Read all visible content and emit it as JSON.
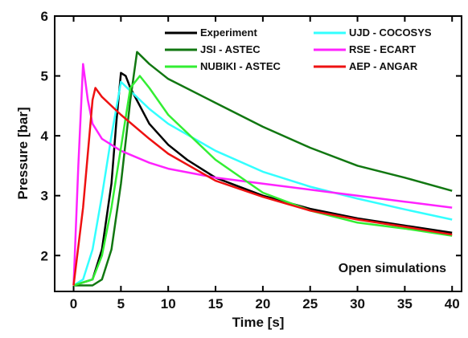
{
  "chart_data": {
    "type": "line",
    "xlabel": "Time [s]",
    "ylabel": "Pressure [bar]",
    "xlim": [
      -2,
      41
    ],
    "ylim": [
      1.4,
      6
    ],
    "xticks": [
      0,
      5,
      10,
      15,
      20,
      25,
      30,
      35,
      40
    ],
    "yticks": [
      2,
      3,
      4,
      5,
      6
    ],
    "grid": false,
    "legend_position": "top-right",
    "annotation": "Open simulations",
    "series": [
      {
        "name": "Experiment",
        "color": "#000000",
        "points": [
          [
            0,
            1.5
          ],
          [
            2,
            1.6
          ],
          [
            3,
            2.1
          ],
          [
            4,
            3.2
          ],
          [
            4.5,
            4.2
          ],
          [
            5,
            5.05
          ],
          [
            5.5,
            5.0
          ],
          [
            6,
            4.8
          ],
          [
            7,
            4.5
          ],
          [
            8,
            4.2
          ],
          [
            10,
            3.85
          ],
          [
            12,
            3.6
          ],
          [
            15,
            3.3
          ],
          [
            20,
            3.0
          ],
          [
            25,
            2.78
          ],
          [
            30,
            2.62
          ],
          [
            35,
            2.5
          ],
          [
            40,
            2.38
          ]
        ]
      },
      {
        "name": "UJD - COCOSYS",
        "color": "#33ffff",
        "points": [
          [
            0,
            1.5
          ],
          [
            1,
            1.6
          ],
          [
            2,
            2.1
          ],
          [
            3,
            3.0
          ],
          [
            4,
            4.0
          ],
          [
            5,
            4.9
          ],
          [
            6,
            4.75
          ],
          [
            8,
            4.45
          ],
          [
            10,
            4.2
          ],
          [
            15,
            3.75
          ],
          [
            20,
            3.4
          ],
          [
            25,
            3.15
          ],
          [
            30,
            2.95
          ],
          [
            35,
            2.77
          ],
          [
            40,
            2.6
          ]
        ]
      },
      {
        "name": "JSI - ASTEC",
        "color": "#117711",
        "points": [
          [
            0,
            1.5
          ],
          [
            2,
            1.5
          ],
          [
            3,
            1.6
          ],
          [
            4,
            2.1
          ],
          [
            5,
            3.2
          ],
          [
            6,
            4.6
          ],
          [
            6.7,
            5.4
          ],
          [
            8,
            5.2
          ],
          [
            10,
            4.95
          ],
          [
            15,
            4.55
          ],
          [
            20,
            4.15
          ],
          [
            25,
            3.8
          ],
          [
            30,
            3.5
          ],
          [
            35,
            3.3
          ],
          [
            40,
            3.08
          ]
        ]
      },
      {
        "name": "RSE - ECART",
        "color": "#ff22ff",
        "points": [
          [
            0,
            1.5
          ],
          [
            0.5,
            3.5
          ],
          [
            1,
            5.2
          ],
          [
            1.5,
            4.6
          ],
          [
            2,
            4.2
          ],
          [
            3,
            3.95
          ],
          [
            5,
            3.75
          ],
          [
            8,
            3.55
          ],
          [
            10,
            3.45
          ],
          [
            15,
            3.3
          ],
          [
            20,
            3.2
          ],
          [
            25,
            3.1
          ],
          [
            30,
            3.0
          ],
          [
            35,
            2.9
          ],
          [
            40,
            2.8
          ]
        ]
      },
      {
        "name": "NUBIKI - ASTEC",
        "color": "#33ee33",
        "points": [
          [
            0,
            1.5
          ],
          [
            2,
            1.6
          ],
          [
            3,
            2.0
          ],
          [
            4,
            2.8
          ],
          [
            5,
            3.8
          ],
          [
            6,
            4.8
          ],
          [
            7,
            5.0
          ],
          [
            8,
            4.8
          ],
          [
            10,
            4.35
          ],
          [
            15,
            3.6
          ],
          [
            20,
            3.05
          ],
          [
            25,
            2.75
          ],
          [
            30,
            2.55
          ],
          [
            35,
            2.45
          ],
          [
            40,
            2.33
          ]
        ]
      },
      {
        "name": "AEP - ANGAR",
        "color": "#ee1111",
        "points": [
          [
            0,
            1.5
          ],
          [
            1,
            2.8
          ],
          [
            2,
            4.6
          ],
          [
            2.3,
            4.8
          ],
          [
            3,
            4.65
          ],
          [
            5,
            4.35
          ],
          [
            8,
            3.95
          ],
          [
            10,
            3.7
          ],
          [
            15,
            3.25
          ],
          [
            20,
            2.98
          ],
          [
            25,
            2.75
          ],
          [
            30,
            2.6
          ],
          [
            35,
            2.48
          ],
          [
            40,
            2.35
          ]
        ]
      }
    ]
  }
}
